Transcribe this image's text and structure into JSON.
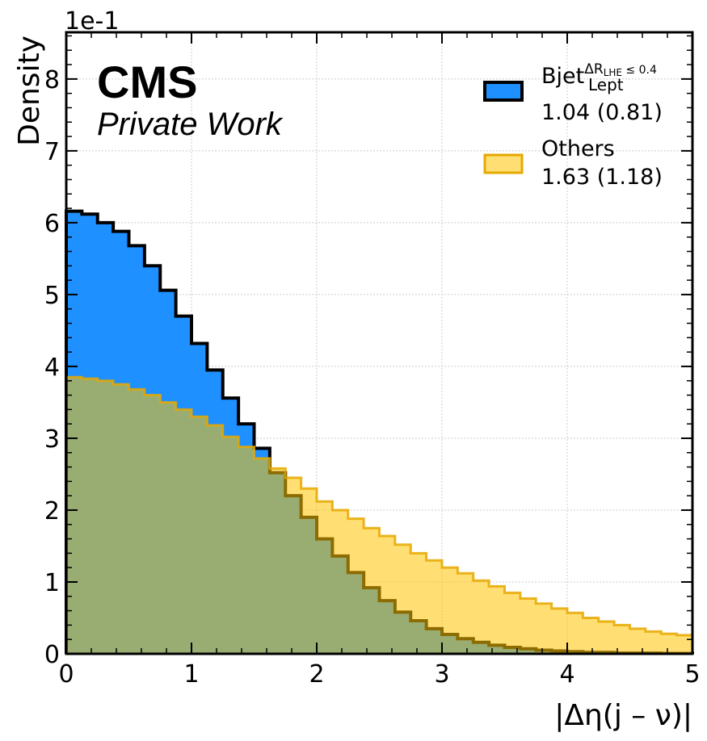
{
  "chart_data": {
    "type": "histogram",
    "xlabel": "|Δη(j – ν)|",
    "ylabel": "Density",
    "multiplier": "1e-1",
    "xlim": [
      0,
      5
    ],
    "ylim": [
      0,
      0.865
    ],
    "xticks": [
      "0",
      "1",
      "2",
      "3",
      "4",
      "5"
    ],
    "yticks": [
      "0",
      "1",
      "2",
      "3",
      "4",
      "5",
      "6",
      "7",
      "8"
    ],
    "grid": true,
    "legend_position": "top-right",
    "experiment_label": "CMS",
    "status_label": "Private Work",
    "bin_edges": [
      0,
      0.125,
      0.25,
      0.375,
      0.5,
      0.625,
      0.75,
      0.875,
      1.0,
      1.125,
      1.25,
      1.375,
      1.5,
      1.625,
      1.75,
      1.875,
      2.0,
      2.125,
      2.25,
      2.375,
      2.5,
      2.625,
      2.75,
      2.875,
      3.0,
      3.125,
      3.25,
      3.375,
      3.5,
      3.625,
      3.75,
      3.875,
      4.0,
      4.125,
      4.25,
      4.375,
      4.5,
      4.625,
      4.75,
      4.875,
      5.0
    ],
    "series": [
      {
        "name": "Bjet",
        "sup": "ΔR",
        "sup_sub": "LHE",
        "sup_tail": " ≤ 0.4",
        "sub": "Lept",
        "stats": "1.04 (0.81)",
        "color": "#1e90ff",
        "edge_color": "#000000",
        "values": [
          0.616,
          0.612,
          0.6,
          0.588,
          0.568,
          0.54,
          0.506,
          0.47,
          0.432,
          0.395,
          0.356,
          0.32,
          0.286,
          0.252,
          0.22,
          0.19,
          0.16,
          0.136,
          0.113,
          0.092,
          0.074,
          0.058,
          0.046,
          0.035,
          0.027,
          0.021,
          0.016,
          0.012,
          0.009,
          0.007,
          0.005,
          0.004,
          0.003,
          0.002,
          0.002,
          0.001,
          0.001,
          0.001,
          0.0005,
          0.0005
        ]
      },
      {
        "name": "Others",
        "stats": "1.63 (1.18)",
        "color": "#ffc400",
        "edge_color": "#e6a800",
        "values": [
          0.385,
          0.383,
          0.38,
          0.375,
          0.368,
          0.36,
          0.35,
          0.34,
          0.33,
          0.318,
          0.302,
          0.288,
          0.272,
          0.258,
          0.245,
          0.23,
          0.212,
          0.2,
          0.188,
          0.175,
          0.164,
          0.152,
          0.14,
          0.13,
          0.12,
          0.112,
          0.102,
          0.094,
          0.085,
          0.077,
          0.07,
          0.063,
          0.057,
          0.05,
          0.045,
          0.04,
          0.035,
          0.031,
          0.028,
          0.026
        ]
      }
    ]
  }
}
